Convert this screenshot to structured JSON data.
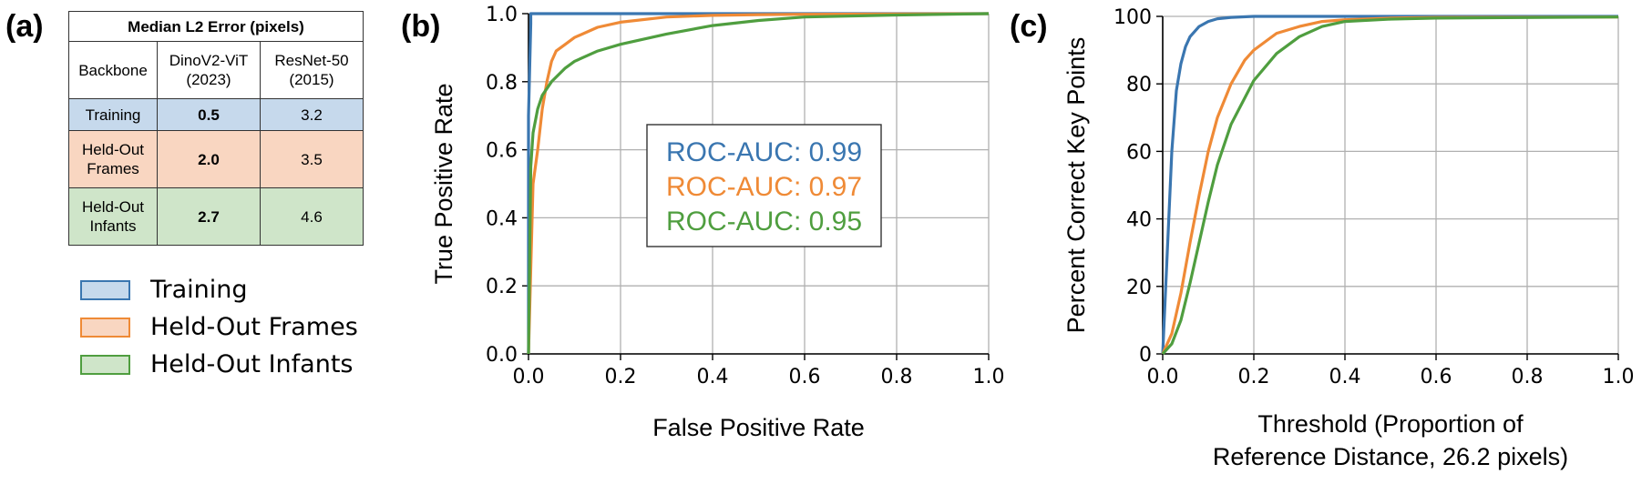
{
  "panels": {
    "a": "(a)",
    "b": "(b)",
    "c": "(c)"
  },
  "table": {
    "title": "Median L2 Error (pixels)",
    "header": [
      "Backbone",
      "DinoV2-ViT\n(2023)",
      "ResNet-50\n(2015)"
    ],
    "rows": [
      {
        "label": "Training",
        "dino": "0.5",
        "resnet": "3.2"
      },
      {
        "label": "Held-Out\nFrames",
        "dino": "2.0",
        "resnet": "3.5"
      },
      {
        "label": "Held-Out\nInfants",
        "dino": "2.7",
        "resnet": "4.6"
      }
    ]
  },
  "legend": [
    {
      "label": "Training",
      "color": "#3a76b0",
      "fill": "#c6d9ec"
    },
    {
      "label": "Held-Out Frames",
      "color": "#ef8a36",
      "fill": "#f9d6c1"
    },
    {
      "label": "Held-Out Infants",
      "color": "#4f9e3f",
      "fill": "#cfe5c9"
    }
  ],
  "chart_data": [
    {
      "type": "line",
      "xlabel": "False Positive Rate",
      "ylabel": "True Positive Rate",
      "xlim": [
        0,
        1
      ],
      "ylim": [
        0,
        1
      ],
      "xticks": [
        "0.0",
        "0.2",
        "0.4",
        "0.6",
        "0.8",
        "1.0"
      ],
      "yticks": [
        "0.0",
        "0.2",
        "0.4",
        "0.6",
        "0.8",
        "1.0"
      ],
      "grid": true,
      "annotations": [
        {
          "text": "ROC-AUC: 0.99",
          "color": "#3a76b0"
        },
        {
          "text": "ROC-AUC: 0.97",
          "color": "#ef8a36"
        },
        {
          "text": "ROC-AUC: 0.95",
          "color": "#4f9e3f"
        }
      ],
      "series": [
        {
          "color": "#3a76b0",
          "x": [
            0,
            0,
            0.005,
            0.005,
            0.2,
            1
          ],
          "y": [
            0,
            0.7,
            0.97,
            1.0,
            1.0,
            1.0
          ]
        },
        {
          "color": "#ef8a36",
          "x": [
            0,
            0.01,
            0.02,
            0.03,
            0.04,
            0.05,
            0.06,
            0.08,
            0.1,
            0.15,
            0.2,
            0.3,
            0.4,
            0.5,
            0.6,
            0.8,
            1
          ],
          "y": [
            0,
            0.5,
            0.6,
            0.72,
            0.8,
            0.86,
            0.89,
            0.91,
            0.93,
            0.96,
            0.975,
            0.99,
            0.995,
            0.997,
            0.998,
            0.999,
            1
          ]
        },
        {
          "color": "#4f9e3f",
          "x": [
            0,
            0.005,
            0.01,
            0.02,
            0.03,
            0.05,
            0.08,
            0.1,
            0.15,
            0.2,
            0.3,
            0.4,
            0.5,
            0.6,
            0.8,
            1
          ],
          "y": [
            0,
            0.55,
            0.65,
            0.72,
            0.76,
            0.8,
            0.84,
            0.86,
            0.89,
            0.91,
            0.94,
            0.965,
            0.98,
            0.99,
            0.996,
            1
          ]
        }
      ]
    },
    {
      "type": "line",
      "xlabel": "Threshold (Proportion of\nReference Distance, 26.2 pixels)",
      "ylabel": "Percent Correct Key Points",
      "xlim": [
        0,
        1
      ],
      "ylim": [
        0,
        100
      ],
      "xticks": [
        "0.0",
        "0.2",
        "0.4",
        "0.6",
        "0.8",
        "1.0"
      ],
      "yticks": [
        "0",
        "20",
        "40",
        "60",
        "80",
        "100"
      ],
      "grid": true,
      "series": [
        {
          "color": "#3a76b0",
          "x": [
            0,
            0.01,
            0.02,
            0.03,
            0.04,
            0.05,
            0.06,
            0.08,
            0.1,
            0.12,
            0.15,
            0.2,
            0.3,
            1
          ],
          "y": [
            0,
            30,
            60,
            78,
            86,
            91,
            94,
            97,
            98.5,
            99.3,
            99.7,
            100,
            100,
            100
          ]
        },
        {
          "color": "#ef8a36",
          "x": [
            0,
            0.02,
            0.04,
            0.06,
            0.08,
            0.1,
            0.12,
            0.15,
            0.18,
            0.2,
            0.25,
            0.3,
            0.35,
            0.4,
            0.5,
            0.6,
            1
          ],
          "y": [
            0,
            6,
            18,
            33,
            47,
            60,
            70,
            80,
            87,
            90,
            95,
            97,
            98.5,
            99,
            99.5,
            99.7,
            99.8
          ]
        },
        {
          "color": "#4f9e3f",
          "x": [
            0,
            0.02,
            0.04,
            0.06,
            0.08,
            0.1,
            0.12,
            0.15,
            0.2,
            0.25,
            0.3,
            0.35,
            0.4,
            0.5,
            0.6,
            1
          ],
          "y": [
            0,
            3,
            10,
            21,
            33,
            45,
            56,
            68,
            81,
            89,
            94,
            97,
            98.5,
            99.2,
            99.5,
            99.8
          ]
        }
      ]
    }
  ]
}
